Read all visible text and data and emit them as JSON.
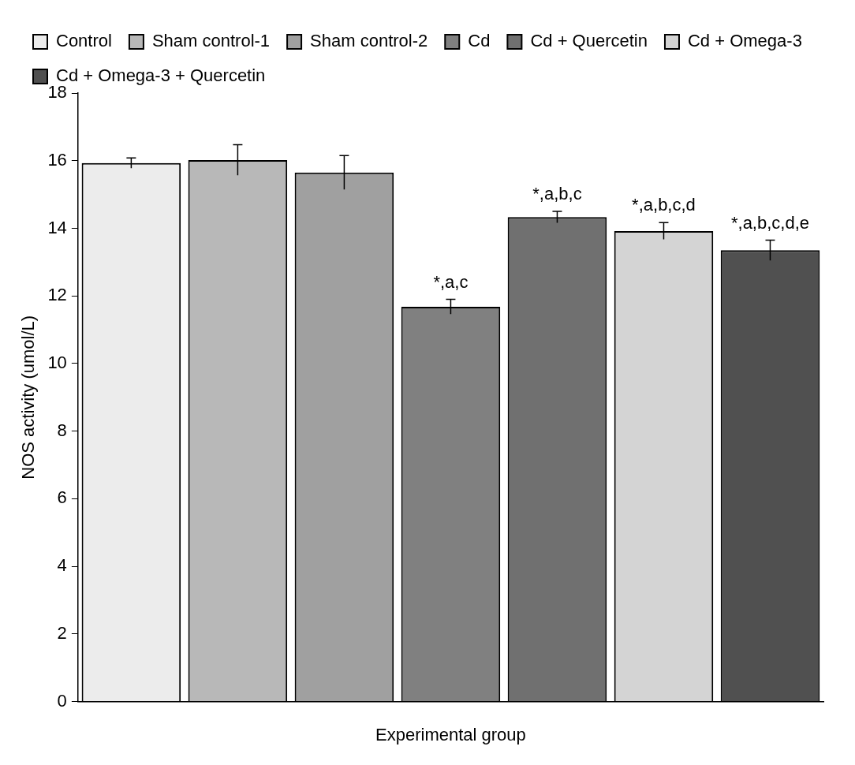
{
  "chart_data": {
    "type": "bar",
    "xlabel": "Experimental group",
    "ylabel": "NOS activity (umol/L)",
    "categories": [
      null,
      null,
      null,
      null,
      null,
      null,
      null
    ],
    "series": [
      {
        "name": "Control",
        "color": "#ececec",
        "values": [
          15.93,
          null,
          null,
          null,
          null,
          null,
          null
        ],
        "errors": [
          0.15,
          null,
          null,
          null,
          null,
          null,
          null
        ]
      },
      {
        "name": "Sham control-1",
        "color": "#b8b8b8",
        "values": [
          null,
          16.02,
          null,
          null,
          null,
          null,
          null
        ],
        "errors": [
          null,
          0.45,
          null,
          null,
          null,
          null,
          null
        ]
      },
      {
        "name": "Sham control-2",
        "color": "#a0a0a0",
        "values": [
          null,
          null,
          15.65,
          null,
          null,
          null,
          null
        ],
        "errors": [
          null,
          null,
          0.5,
          null,
          null,
          null,
          null
        ]
      },
      {
        "name": "Cd",
        "color": "#808080",
        "values": [
          null,
          null,
          null,
          11.68,
          null,
          null,
          null
        ],
        "errors": [
          null,
          null,
          null,
          0.22,
          null,
          null,
          null
        ],
        "value_labels": [
          null,
          null,
          null,
          "*,a,c",
          null,
          null,
          null
        ]
      },
      {
        "name": "Cd + Quercetin",
        "color": "#707070",
        "values": [
          null,
          null,
          null,
          null,
          14.33,
          null,
          null
        ],
        "errors": [
          null,
          null,
          null,
          null,
          0.17,
          null,
          null
        ],
        "value_labels": [
          null,
          null,
          null,
          null,
          "*,a,b,c",
          null,
          null
        ]
      },
      {
        "name": "Cd + Omega-3",
        "color": "#d4d4d4",
        "values": [
          null,
          null,
          null,
          null,
          null,
          13.92,
          null
        ],
        "errors": [
          null,
          null,
          null,
          null,
          null,
          0.25,
          null
        ],
        "value_labels": [
          null,
          null,
          null,
          null,
          null,
          "*,a,b,c,d",
          null
        ]
      },
      {
        "name": "Cd + Omega-3 + Quercetin",
        "color": "#505050",
        "values": [
          null,
          null,
          null,
          null,
          null,
          null,
          13.35
        ],
        "errors": [
          null,
          null,
          null,
          null,
          null,
          null,
          0.3
        ],
        "value_labels": [
          null,
          null,
          null,
          null,
          null,
          null,
          "*,a,b,c,d,e"
        ]
      }
    ],
    "ylim": [
      0,
      18
    ],
    "yticks": [
      0,
      2,
      4,
      6,
      8,
      10,
      12,
      14,
      16,
      18
    ],
    "grid": false,
    "legend": "top"
  }
}
